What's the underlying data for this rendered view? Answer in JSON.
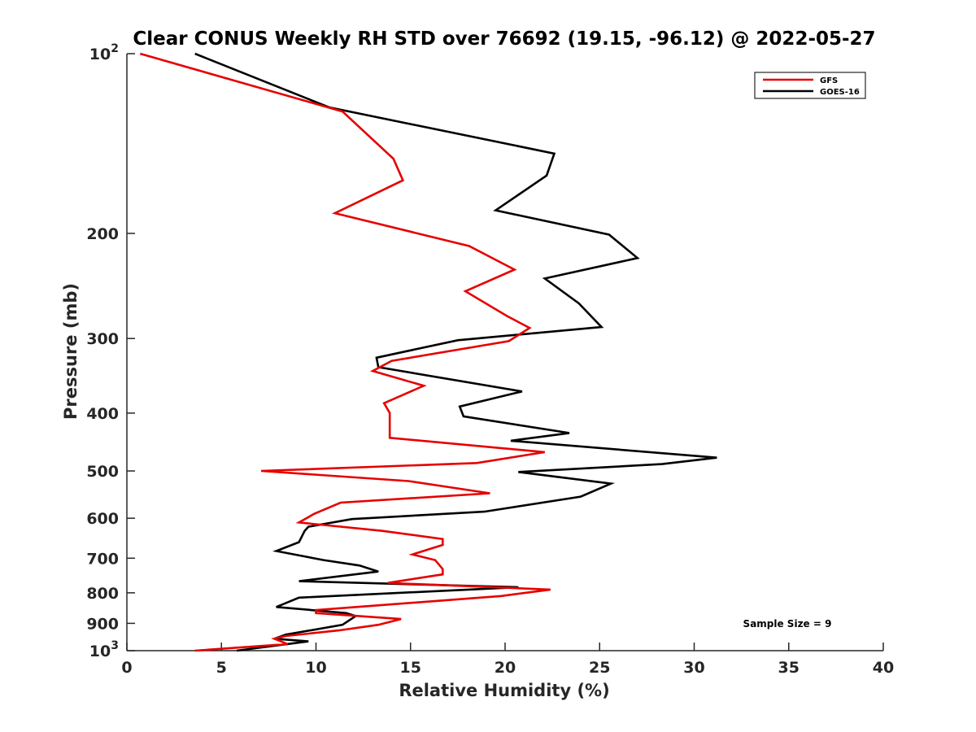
{
  "chart_data": {
    "type": "line",
    "title": "Clear CONUS Weekly RH STD over 76692 (19.15, -96.12) @ 2022-05-27",
    "xlabel": "Relative Humidity (%)",
    "ylabel": "Pressure (mb)",
    "xlim": [
      0,
      40
    ],
    "ylim": [
      100,
      1000
    ],
    "yscale": "log",
    "yreversed": true,
    "x_ticks": [
      0,
      5,
      10,
      15,
      20,
      25,
      30,
      35,
      40
    ],
    "x_tick_labels": [
      "0",
      "5",
      "10",
      "15",
      "20",
      "25",
      "30",
      "35",
      "40"
    ],
    "y_ticks": [
      100,
      200,
      300,
      400,
      500,
      600,
      700,
      800,
      900,
      1000
    ],
    "y_tick_labels": [
      {
        "base": "10",
        "exp": "2"
      },
      {
        "text": "200"
      },
      {
        "text": "300"
      },
      {
        "text": "400"
      },
      {
        "text": "500"
      },
      {
        "text": "600"
      },
      {
        "text": "700"
      },
      {
        "text": "800"
      },
      {
        "text": "900"
      },
      {
        "base": "10",
        "exp": "3"
      }
    ],
    "legend_position": "top-right",
    "annotation": "Sample Size = 9",
    "series": [
      {
        "name": "GFS",
        "color": "#e60000",
        "points": [
          [
            0.7,
            100
          ],
          [
            11.4,
            125
          ],
          [
            14.1,
            150
          ],
          [
            14.6,
            163
          ],
          [
            11.0,
            185
          ],
          [
            18.1,
            210
          ],
          [
            20.5,
            230
          ],
          [
            17.9,
            250
          ],
          [
            20.1,
            275
          ],
          [
            21.3,
            288
          ],
          [
            20.2,
            303
          ],
          [
            14.0,
            327
          ],
          [
            13.0,
            340
          ],
          [
            15.7,
            360
          ],
          [
            13.6,
            385
          ],
          [
            13.9,
            400
          ],
          [
            13.9,
            420
          ],
          [
            13.9,
            440
          ],
          [
            22.1,
            465
          ],
          [
            18.5,
            485
          ],
          [
            7.1,
            500
          ],
          [
            14.9,
            520
          ],
          [
            19.2,
            545
          ],
          [
            11.3,
            565
          ],
          [
            9.9,
            590
          ],
          [
            9.1,
            610
          ],
          [
            13.5,
            630
          ],
          [
            16.7,
            650
          ],
          [
            16.7,
            665
          ],
          [
            15.1,
            690
          ],
          [
            16.3,
            705
          ],
          [
            16.7,
            730
          ],
          [
            16.7,
            745
          ],
          [
            13.8,
            770
          ],
          [
            22.4,
            790
          ],
          [
            19.8,
            810
          ],
          [
            10.0,
            855
          ],
          [
            10.0,
            865
          ],
          [
            14.5,
            885
          ],
          [
            13.3,
            905
          ],
          [
            11.2,
            925
          ],
          [
            8.4,
            945
          ],
          [
            7.8,
            955
          ],
          [
            8.5,
            975
          ],
          [
            3.6,
            1000
          ]
        ]
      },
      {
        "name": "GOES-16",
        "color": "#000000",
        "points": [
          [
            3.6,
            100
          ],
          [
            10.7,
            123
          ],
          [
            22.6,
            147
          ],
          [
            22.2,
            160
          ],
          [
            19.5,
            183
          ],
          [
            25.5,
            201
          ],
          [
            27.0,
            220
          ],
          [
            22.1,
            238
          ],
          [
            23.9,
            262
          ],
          [
            25.1,
            287
          ],
          [
            17.5,
            302
          ],
          [
            13.2,
            323
          ],
          [
            13.3,
            335
          ],
          [
            20.9,
            368
          ],
          [
            17.6,
            390
          ],
          [
            17.8,
            405
          ],
          [
            23.4,
            432
          ],
          [
            20.3,
            445
          ],
          [
            31.2,
            475
          ],
          [
            28.3,
            487
          ],
          [
            20.7,
            502
          ],
          [
            25.6,
            525
          ],
          [
            24.0,
            552
          ],
          [
            18.9,
            585
          ],
          [
            11.9,
            602
          ],
          [
            9.6,
            620
          ],
          [
            9.4,
            630
          ],
          [
            9.1,
            658
          ],
          [
            7.9,
            681
          ],
          [
            10.4,
            705
          ],
          [
            12.3,
            720
          ],
          [
            13.3,
            737
          ],
          [
            9.1,
            765
          ],
          [
            20.7,
            783
          ],
          [
            9.1,
            815
          ],
          [
            7.9,
            845
          ],
          [
            11.6,
            865
          ],
          [
            12.1,
            875
          ],
          [
            11.4,
            905
          ],
          [
            8.4,
            940
          ],
          [
            7.8,
            955
          ],
          [
            9.6,
            965
          ],
          [
            5.8,
            1000
          ]
        ]
      }
    ]
  }
}
